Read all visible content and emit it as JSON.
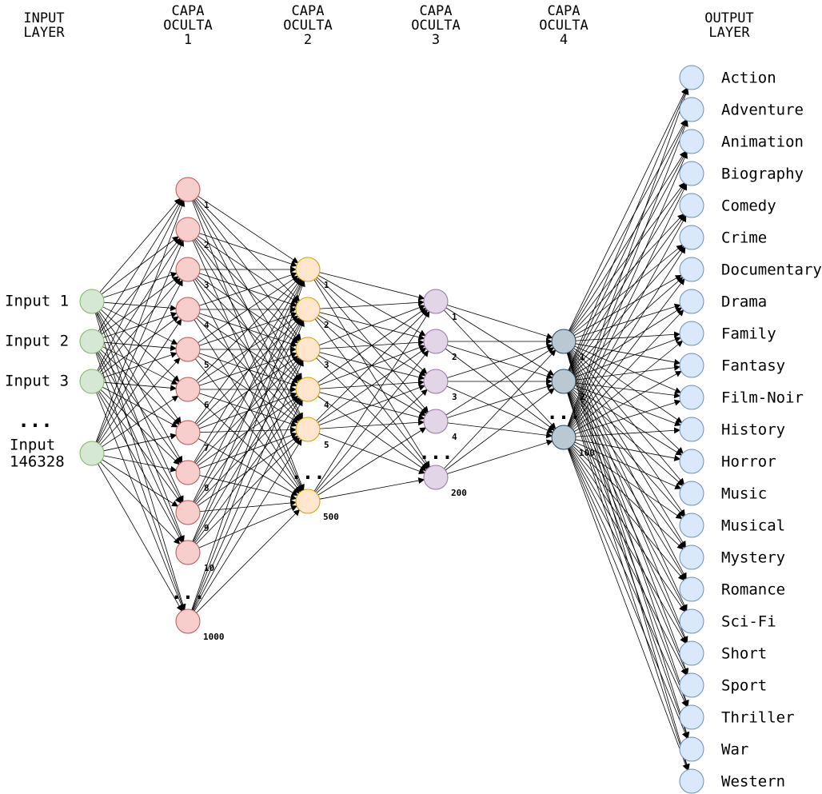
{
  "layers": [
    {
      "id": "input",
      "title": [
        "INPUT",
        "LAYER"
      ],
      "fill": "#d5e8d4",
      "stroke": "#82b366",
      "labels": [
        "Input 1",
        "Input 2",
        "Input 3"
      ],
      "ellipsis": "...",
      "last_label": [
        "Input",
        "146328"
      ]
    },
    {
      "id": "hidden1",
      "title": [
        "CAPA",
        "OCULTA",
        "1"
      ],
      "fill": "#f8cecc",
      "stroke": "#b85450",
      "indices": [
        "1",
        "2",
        "3",
        "4",
        "5",
        "6",
        "7",
        "8",
        "9",
        "10",
        "1000"
      ],
      "ellipsis": "..."
    },
    {
      "id": "hidden2",
      "title": [
        "CAPA",
        "OCULTA",
        "2"
      ],
      "fill": "#ffe6cc",
      "stroke": "#d79b00",
      "indices": [
        "1",
        "2",
        "3",
        "4",
        "5",
        "500"
      ],
      "ellipsis": "..."
    },
    {
      "id": "hidden3",
      "title": [
        "CAPA",
        "OCULTA",
        "3"
      ],
      "fill": "#e1d5e7",
      "stroke": "#9673a6",
      "indices": [
        "1",
        "2",
        "3",
        "4",
        "200"
      ],
      "ellipsis": "..."
    },
    {
      "id": "hidden4",
      "title": [
        "CAPA",
        "OCULTA",
        "4"
      ],
      "fill": "#bac8d3",
      "stroke": "#23445d",
      "indices": [
        "1",
        "2",
        "100"
      ],
      "ellipsis": "..."
    },
    {
      "id": "output",
      "title": [
        "OUTPUT",
        "LAYER"
      ],
      "fill": "#dae8fc",
      "stroke": "#6c8ebf",
      "labels": [
        "Action",
        "Adventure",
        "Animation",
        "Biography",
        "Comedy",
        "Crime",
        "Documentary",
        "Drama",
        "Family",
        "Fantasy",
        "Film-Noir",
        "History",
        "Horror",
        "Music",
        "Musical",
        "Mystery",
        "Romance",
        "Sci-Fi",
        "Short",
        "Sport",
        "Thriller",
        "War",
        "Western"
      ]
    }
  ]
}
